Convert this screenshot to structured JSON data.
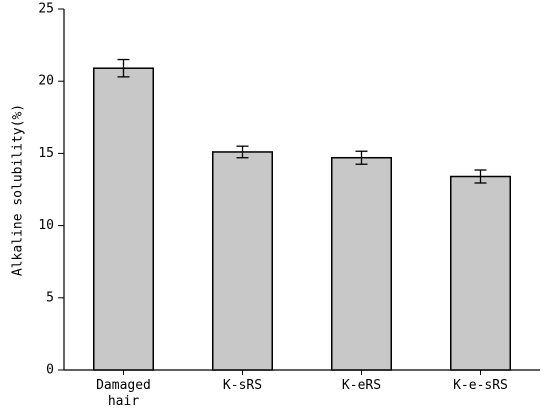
{
  "chart_data": {
    "type": "bar",
    "y_label": "Alkaline solubility(%)",
    "categories": [
      "Damaged hair",
      "K-sRS",
      "K-eRS",
      "K-e-sRS"
    ],
    "values": [
      20.9,
      15.1,
      14.7,
      13.4
    ],
    "errors": [
      0.6,
      0.4,
      0.45,
      0.45
    ],
    "color": "#c8c8c8",
    "ylim": [
      0,
      25
    ],
    "yticks": [
      0,
      5,
      10,
      15,
      20,
      25
    ],
    "grid": false
  }
}
